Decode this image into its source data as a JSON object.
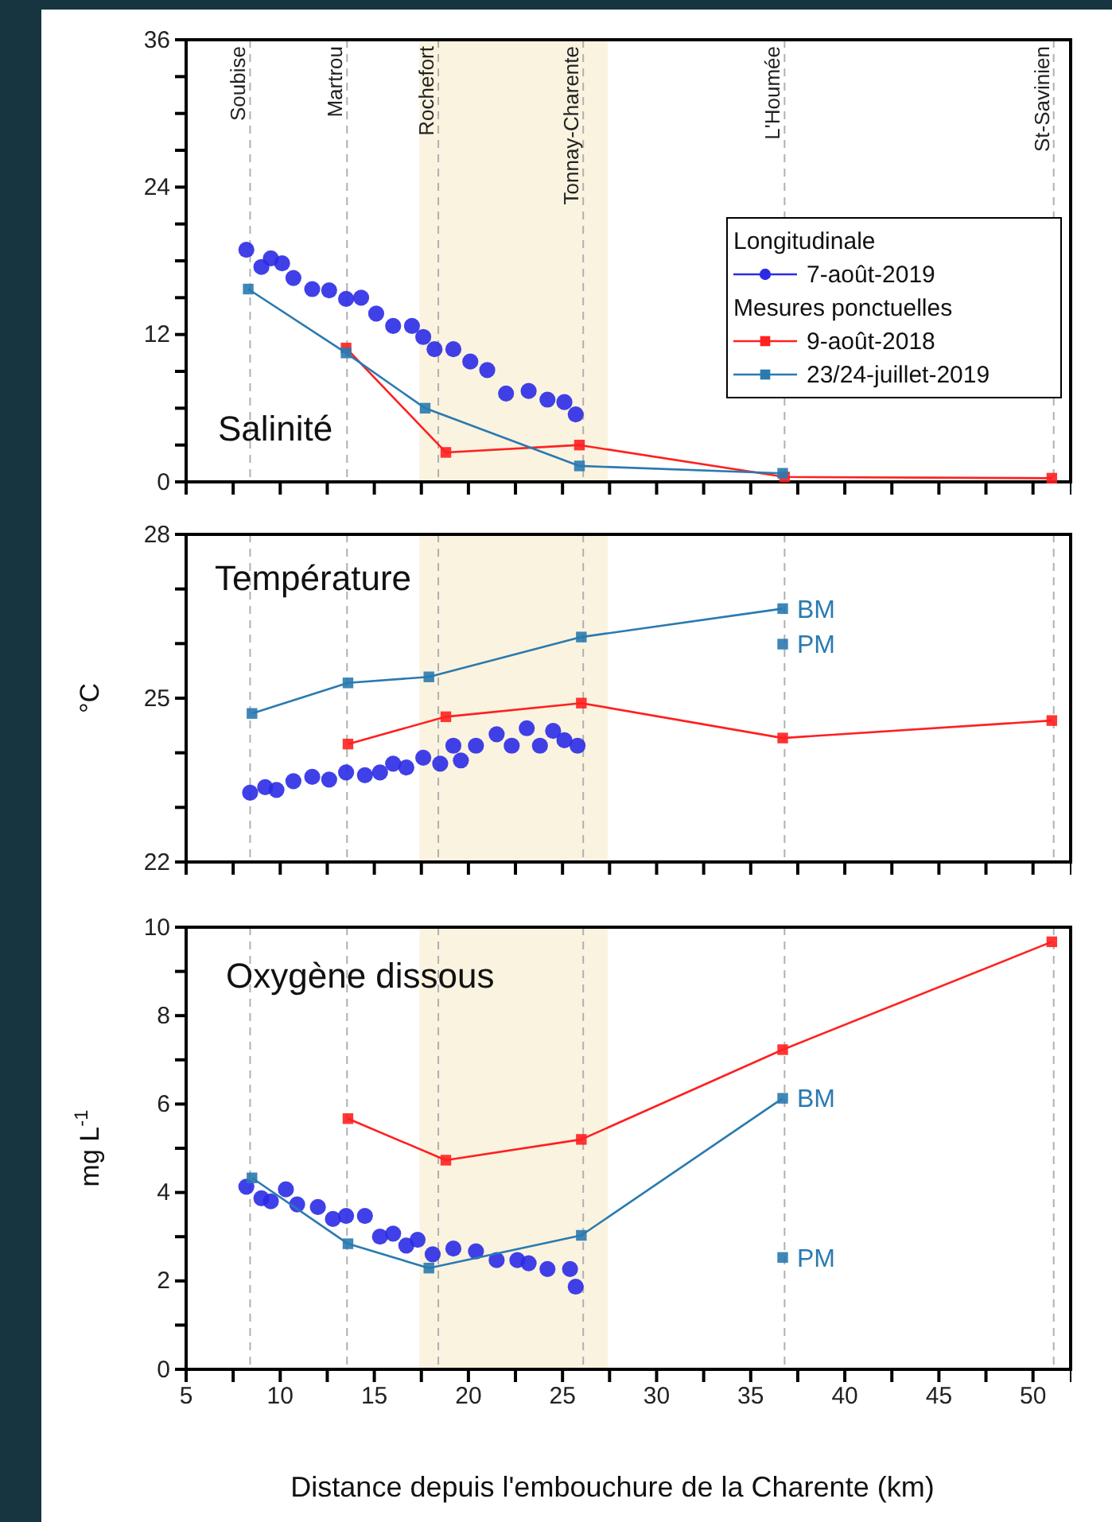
{
  "chart_data": [
    {
      "type": "line",
      "title": "Salinité",
      "xlim": [
        5,
        52
      ],
      "xticks": [
        5,
        {
          "value": 7.5,
          "label": null
        },
        10,
        {
          "value": 12.5,
          "label": null
        },
        15,
        {
          "value": 17.5,
          "label": null
        },
        20,
        {
          "value": 22.5,
          "label": null
        },
        25,
        {
          "value": 27.5,
          "label": null
        },
        30,
        {
          "value": 32.5,
          "label": null
        },
        35,
        {
          "value": 37.5,
          "label": null
        },
        40,
        {
          "value": 42.5,
          "label": null
        },
        45,
        {
          "value": 47.5,
          "label": null
        },
        50
      ],
      "ylim": [
        0,
        36
      ],
      "yticks": [
        0,
        {
          "value": 3,
          "label": null
        },
        {
          "value": 6,
          "label": null
        },
        {
          "value": 9,
          "label": null
        },
        12,
        {
          "value": 15,
          "label": null
        },
        {
          "value": 18,
          "label": null
        },
        {
          "value": 21,
          "label": null
        },
        24,
        {
          "value": 27,
          "label": null
        },
        {
          "value": 30,
          "label": null
        },
        {
          "value": 33,
          "label": null
        },
        36
      ],
      "tick_labels": "y",
      "legend": "right",
      "legend_title": "Longitudinale",
      "annotations": [
        "Mesures ponctuelles"
      ],
      "bands": [
        {
          "axis": "x",
          "from": 17.4,
          "to": 27.4,
          "color": "#faf3e0"
        }
      ],
      "ref_lines": [
        {
          "axis": "x",
          "value": 8.4,
          "label": "Soubise",
          "line_style": "dashed",
          "color": "#b0b0b0"
        },
        {
          "axis": "x",
          "value": 13.55,
          "label": "Martrou",
          "line_style": "dashed",
          "color": "#b0b0b0"
        },
        {
          "axis": "x",
          "value": 18.4,
          "label": "Rochefort",
          "line_style": "dashed",
          "color": "#b0b0b0"
        },
        {
          "axis": "x",
          "value": 26.1,
          "label": "Tonnay-Charente",
          "line_style": "dashed",
          "color": "#b0b0b0"
        },
        {
          "axis": "x",
          "value": 36.8,
          "label": "L'Houmée",
          "line_style": "dashed",
          "color": "#b0b0b0"
        },
        {
          "axis": "x",
          "value": 51.1,
          "label": "St-Savinien",
          "line_style": "dashed",
          "color": "#b0b0b0"
        }
      ],
      "series": [
        {
          "type": "scatter",
          "name": "7-août-2019",
          "color": "#2b2be6",
          "marker": "circle",
          "x": [
            8.2,
            9.0,
            9.5,
            10.1,
            10.7,
            11.7,
            12.6,
            13.5,
            14.3,
            15.1,
            16.0,
            17.0,
            17.6,
            18.2,
            19.2,
            20.1,
            21.0,
            22.0,
            23.2,
            24.2,
            25.1,
            25.7
          ],
          "values": [
            18.9,
            17.5,
            18.2,
            17.8,
            16.6,
            15.7,
            15.6,
            14.9,
            15.0,
            13.7,
            12.7,
            12.7,
            11.8,
            10.8,
            10.8,
            9.8,
            9.1,
            7.2,
            7.4,
            6.7,
            6.5,
            5.5
          ]
        },
        {
          "name": "9-août-2018",
          "color": "#ff2020",
          "marker": "square",
          "x": [
            13.5,
            18.8,
            25.9,
            36.8,
            51.0
          ],
          "values": [
            10.9,
            2.4,
            3.0,
            0.4,
            0.3
          ]
        },
        {
          "name": "23/24-juillet-2019",
          "color": "#2a7ab0",
          "marker": "square",
          "x": [
            8.3,
            13.5,
            17.7,
            25.9,
            36.7
          ],
          "values": [
            15.7,
            10.5,
            6.0,
            1.3,
            0.7
          ]
        }
      ]
    },
    {
      "type": "line",
      "title": "Température",
      "ylabel": "°C",
      "xlim": [
        5,
        52
      ],
      "xticks": [
        5,
        {
          "value": 7.5,
          "label": null
        },
        10,
        {
          "value": 12.5,
          "label": null
        },
        15,
        {
          "value": 17.5,
          "label": null
        },
        20,
        {
          "value": 22.5,
          "label": null
        },
        25,
        {
          "value": 27.5,
          "label": null
        },
        30,
        {
          "value": 32.5,
          "label": null
        },
        35,
        {
          "value": 37.5,
          "label": null
        },
        40,
        {
          "value": 42.5,
          "label": null
        },
        45,
        {
          "value": 47.5,
          "label": null
        },
        50
      ],
      "ylim": [
        22,
        28
      ],
      "yticks": [
        22,
        {
          "value": 23,
          "label": null
        },
        {
          "value": 24,
          "label": null
        },
        25,
        {
          "value": 26,
          "label": null
        },
        {
          "value": 27,
          "label": null
        },
        28
      ],
      "tick_labels": "y",
      "annotations": [
        "BM",
        "PM"
      ],
      "bands": [
        {
          "axis": "x",
          "from": 17.4,
          "to": 27.4,
          "color": "#faf3e0"
        }
      ],
      "ref_lines": [
        {
          "axis": "x",
          "value": 8.4,
          "line_style": "dashed",
          "color": "#b0b0b0"
        },
        {
          "axis": "x",
          "value": 13.55,
          "line_style": "dashed",
          "color": "#b0b0b0"
        },
        {
          "axis": "x",
          "value": 18.4,
          "line_style": "dashed",
          "color": "#b0b0b0"
        },
        {
          "axis": "x",
          "value": 26.1,
          "line_style": "dashed",
          "color": "#b0b0b0"
        },
        {
          "axis": "x",
          "value": 36.8,
          "line_style": "dashed",
          "color": "#b0b0b0"
        },
        {
          "axis": "x",
          "value": 51.1,
          "line_style": "dashed",
          "color": "#b0b0b0"
        }
      ],
      "series": [
        {
          "type": "scatter",
          "color": "#2b2be6",
          "marker": "circle",
          "x": [
            8.4,
            9.2,
            9.8,
            10.7,
            11.7,
            12.6,
            13.5,
            14.5,
            15.3,
            16.0,
            16.7,
            17.6,
            18.5,
            19.2,
            19.6,
            20.4,
            21.5,
            22.3,
            23.1,
            23.8,
            24.5,
            25.1,
            25.8
          ],
          "values": [
            23.27,
            23.37,
            23.32,
            23.48,
            23.56,
            23.51,
            23.64,
            23.59,
            23.64,
            23.8,
            23.73,
            23.91,
            23.8,
            24.13,
            23.86,
            24.13,
            24.34,
            24.13,
            24.45,
            24.13,
            24.4,
            24.23,
            24.13
          ]
        },
        {
          "color": "#ff2020",
          "marker": "square",
          "x": [
            13.6,
            18.8,
            26.0,
            36.7,
            51.0
          ],
          "values": [
            24.16,
            24.66,
            24.91,
            24.27,
            24.59
          ]
        },
        {
          "color": "#2a7ab0",
          "marker": "square",
          "x": [
            8.5,
            13.6,
            17.9,
            26.0,
            36.7
          ],
          "values": [
            24.72,
            25.28,
            25.39,
            26.12,
            26.64
          ]
        },
        {
          "type": "scatter",
          "color": "#2a7ab0",
          "marker": "square",
          "x": [
            36.7
          ],
          "values": [
            25.99
          ]
        }
      ]
    },
    {
      "type": "line",
      "title": "Oxygène dissous",
      "ylabel": "mg L$^{-1}$",
      "xlabel": "Distance depuis l'embouchure de la Charente (km)",
      "xlim": [
        5,
        52
      ],
      "xticks": [
        5,
        {
          "value": 7.5,
          "label": null
        },
        10,
        {
          "value": 12.5,
          "label": null
        },
        15,
        {
          "value": 17.5,
          "label": null
        },
        20,
        {
          "value": 22.5,
          "label": null
        },
        25,
        {
          "value": 27.5,
          "label": null
        },
        30,
        {
          "value": 32.5,
          "label": null
        },
        35,
        {
          "value": 37.5,
          "label": null
        },
        40,
        {
          "value": 42.5,
          "label": null
        },
        45,
        {
          "value": 47.5,
          "label": null
        },
        50
      ],
      "ylim": [
        0,
        10
      ],
      "yticks": [
        0,
        {
          "value": 1,
          "label": null
        },
        2,
        {
          "value": 3,
          "label": null
        },
        4,
        {
          "value": 5,
          "label": null
        },
        6,
        {
          "value": 7,
          "label": null
        },
        8,
        {
          "value": 9,
          "label": null
        },
        10
      ],
      "annotations": [
        "BM",
        "PM"
      ],
      "bands": [
        {
          "axis": "x",
          "from": 17.4,
          "to": 27.4,
          "color": "#faf3e0"
        }
      ],
      "ref_lines": [
        {
          "axis": "x",
          "value": 8.4,
          "line_style": "dashed",
          "color": "#b0b0b0"
        },
        {
          "axis": "x",
          "value": 13.55,
          "line_style": "dashed",
          "color": "#b0b0b0"
        },
        {
          "axis": "x",
          "value": 18.4,
          "line_style": "dashed",
          "color": "#b0b0b0"
        },
        {
          "axis": "x",
          "value": 26.1,
          "line_style": "dashed",
          "color": "#b0b0b0"
        },
        {
          "axis": "x",
          "value": 36.8,
          "line_style": "dashed",
          "color": "#b0b0b0"
        },
        {
          "axis": "x",
          "value": 51.1,
          "line_style": "dashed",
          "color": "#b0b0b0"
        }
      ],
      "series": [
        {
          "type": "scatter",
          "color": "#2b2be6",
          "marker": "circle",
          "x": [
            8.2,
            9.0,
            9.5,
            10.3,
            10.9,
            12.0,
            12.8,
            13.5,
            14.5,
            15.3,
            16.0,
            16.7,
            17.3,
            18.1,
            19.2,
            20.4,
            21.5,
            22.6,
            23.2,
            24.2,
            25.4,
            25.7
          ],
          "values": [
            4.13,
            3.87,
            3.8,
            4.07,
            3.73,
            3.67,
            3.4,
            3.47,
            3.47,
            3.0,
            3.07,
            2.8,
            2.93,
            2.6,
            2.73,
            2.67,
            2.47,
            2.47,
            2.4,
            2.27,
            2.27,
            1.87
          ]
        },
        {
          "color": "#ff2020",
          "marker": "square",
          "x": [
            13.6,
            18.8,
            26.0,
            36.7,
            51.0
          ],
          "values": [
            5.67,
            4.73,
            5.2,
            7.23,
            9.67
          ]
        },
        {
          "color": "#2a7ab0",
          "marker": "square",
          "x": [
            8.5,
            13.6,
            17.9,
            26.0,
            36.7
          ],
          "values": [
            4.33,
            2.84,
            2.29,
            3.03,
            6.13
          ]
        },
        {
          "type": "scatter",
          "color": "#2a7ab0",
          "marker": "square",
          "x": [
            36.7
          ],
          "values": [
            2.53
          ]
        }
      ]
    }
  ]
}
